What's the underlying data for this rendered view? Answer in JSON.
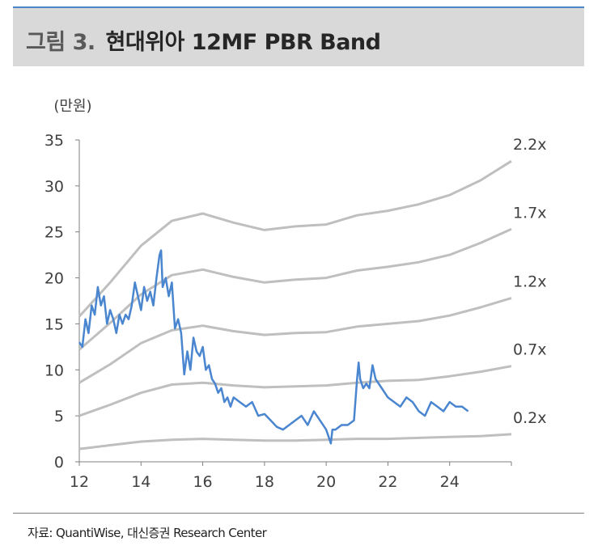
{
  "header": {
    "label": "그림 3.",
    "title": "현대위아 12MF PBR Band",
    "background": "#d9d9d9",
    "accent": "#4a86c8"
  },
  "source": "자료: QuantiWise, 대신증권 Research Center",
  "chart_data": {
    "type": "line",
    "title": "현대위아 12MF PBR Band",
    "y_unit_label": "(만원)",
    "xlim": [
      2012,
      2026
    ],
    "ylim": [
      0,
      35
    ],
    "x_ticks": [
      "12",
      "14",
      "16",
      "18",
      "20",
      "22",
      "24"
    ],
    "y_ticks": [
      "0",
      "5",
      "10",
      "15",
      "20",
      "25",
      "30",
      "35"
    ],
    "grid": false,
    "band_color": "#bfbfbf",
    "price_color": "#4a86d0",
    "bands": [
      {
        "label": "2.2x",
        "x": [
          2012.0,
          2013.0,
          2014.0,
          2015.0,
          2016.0,
          2017.0,
          2018.0,
          2019.0,
          2020.0,
          2021.0,
          2022.0,
          2023.0,
          2024.0,
          2025.0,
          2026.0
        ],
        "y": [
          15.8,
          19.5,
          23.5,
          26.2,
          27.0,
          26.0,
          25.2,
          25.6,
          25.8,
          26.8,
          27.3,
          28.0,
          29.0,
          30.6,
          32.7
        ]
      },
      {
        "label": "1.7x",
        "x": [
          2012.0,
          2013.0,
          2014.0,
          2015.0,
          2016.0,
          2017.0,
          2018.0,
          2019.0,
          2020.0,
          2021.0,
          2022.0,
          2023.0,
          2024.0,
          2025.0,
          2026.0
        ],
        "y": [
          12.2,
          15.1,
          18.2,
          20.3,
          20.9,
          20.1,
          19.5,
          19.8,
          20.0,
          20.8,
          21.2,
          21.7,
          22.5,
          23.8,
          25.3
        ]
      },
      {
        "label": "1.2x",
        "x": [
          2012.0,
          2013.0,
          2014.0,
          2015.0,
          2016.0,
          2017.0,
          2018.0,
          2019.0,
          2020.0,
          2021.0,
          2022.0,
          2023.0,
          2024.0,
          2025.0,
          2026.0
        ],
        "y": [
          8.6,
          10.6,
          12.9,
          14.3,
          14.8,
          14.2,
          13.8,
          14.0,
          14.1,
          14.7,
          15.0,
          15.3,
          15.9,
          16.8,
          17.8
        ]
      },
      {
        "label": "0.7x",
        "x": [
          2012.0,
          2013.0,
          2014.0,
          2015.0,
          2016.0,
          2017.0,
          2018.0,
          2019.0,
          2020.0,
          2021.0,
          2022.0,
          2023.0,
          2024.0,
          2025.0,
          2026.0
        ],
        "y": [
          5.0,
          6.2,
          7.5,
          8.4,
          8.6,
          8.3,
          8.1,
          8.2,
          8.3,
          8.6,
          8.8,
          8.9,
          9.3,
          9.8,
          10.4
        ]
      },
      {
        "label": "0.2x",
        "x": [
          2012.0,
          2013.0,
          2014.0,
          2015.0,
          2016.0,
          2017.0,
          2018.0,
          2019.0,
          2020.0,
          2021.0,
          2022.0,
          2023.0,
          2024.0,
          2025.0,
          2026.0
        ],
        "y": [
          1.4,
          1.8,
          2.2,
          2.4,
          2.5,
          2.4,
          2.3,
          2.3,
          2.4,
          2.5,
          2.5,
          2.6,
          2.7,
          2.8,
          3.0
        ]
      }
    ],
    "price": {
      "x": [
        2012.0,
        2012.1,
        2012.2,
        2012.3,
        2012.4,
        2012.5,
        2012.6,
        2012.7,
        2012.8,
        2012.9,
        2013.0,
        2013.1,
        2013.2,
        2013.3,
        2013.4,
        2013.5,
        2013.6,
        2013.7,
        2013.8,
        2013.9,
        2014.0,
        2014.1,
        2014.2,
        2014.3,
        2014.4,
        2014.5,
        2014.6,
        2014.65,
        2014.7,
        2014.8,
        2014.9,
        2015.0,
        2015.1,
        2015.2,
        2015.3,
        2015.4,
        2015.5,
        2015.6,
        2015.7,
        2015.8,
        2015.9,
        2016.0,
        2016.1,
        2016.2,
        2016.3,
        2016.4,
        2016.5,
        2016.6,
        2016.7,
        2016.8,
        2016.9,
        2017.0,
        2017.2,
        2017.4,
        2017.6,
        2017.8,
        2018.0,
        2018.2,
        2018.4,
        2018.6,
        2018.8,
        2019.0,
        2019.2,
        2019.4,
        2019.6,
        2019.8,
        2020.0,
        2020.1,
        2020.15,
        2020.2,
        2020.3,
        2020.5,
        2020.7,
        2020.9,
        2021.0,
        2021.05,
        2021.1,
        2021.2,
        2021.3,
        2021.4,
        2021.5,
        2021.6,
        2021.8,
        2022.0,
        2022.2,
        2022.4,
        2022.6,
        2022.8,
        2023.0,
        2023.2,
        2023.4,
        2023.6,
        2023.8,
        2024.0,
        2024.2,
        2024.4,
        2024.6
      ],
      "y": [
        13.0,
        12.5,
        15.5,
        14.0,
        17.0,
        16.0,
        19.0,
        17.0,
        18.0,
        15.0,
        16.5,
        15.5,
        14.0,
        16.0,
        15.0,
        16.0,
        15.5,
        17.0,
        19.5,
        18.0,
        16.5,
        19.0,
        17.5,
        18.5,
        17.0,
        20.0,
        22.5,
        23.0,
        19.0,
        20.0,
        18.0,
        19.5,
        14.5,
        15.5,
        14.0,
        9.5,
        12.0,
        10.0,
        13.5,
        12.0,
        11.5,
        12.5,
        10.0,
        10.5,
        9.0,
        8.5,
        7.5,
        8.0,
        6.5,
        7.0,
        6.0,
        7.0,
        6.5,
        6.0,
        6.5,
        5.0,
        5.2,
        4.5,
        3.8,
        3.5,
        4.0,
        4.5,
        5.0,
        4.0,
        5.5,
        4.5,
        3.5,
        2.5,
        2.0,
        3.5,
        3.5,
        4.0,
        4.0,
        4.5,
        9.0,
        10.8,
        9.0,
        8.0,
        8.5,
        8.0,
        10.5,
        9.0,
        8.0,
        7.0,
        6.5,
        6.0,
        7.0,
        6.5,
        5.5,
        5.0,
        6.5,
        6.0,
        5.5,
        6.5,
        6.0,
        6.0,
        5.5
      ]
    }
  }
}
